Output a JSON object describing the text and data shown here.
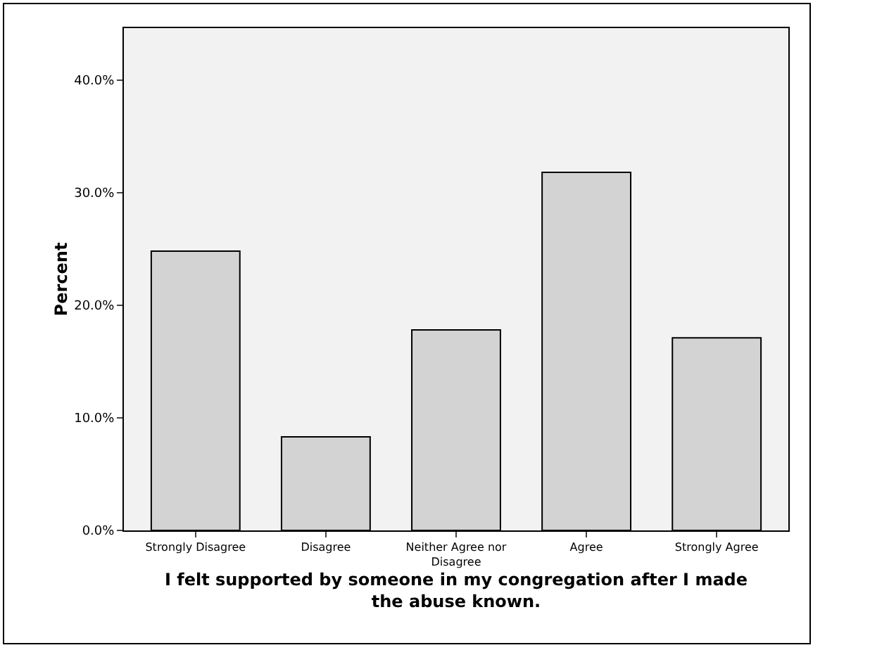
{
  "chart_data": {
    "type": "bar",
    "xlabel": "I felt supported by someone in my congregation after I made the abuse known.",
    "ylabel": "Percent",
    "categories": [
      "Strongly Disagree",
      "Disagree",
      "Neither Agree nor Disagree",
      "Agree",
      "Strongly Agree"
    ],
    "values": [
      24.8,
      8.3,
      17.8,
      31.8,
      17.1
    ],
    "color": "#d3d3d3",
    "ylim": [
      0,
      44.6
    ],
    "yticks": [
      {
        "value": 0,
        "label": "0.0%"
      },
      {
        "value": 10,
        "label": "10.0%"
      },
      {
        "value": 20,
        "label": "20.0%"
      },
      {
        "value": 30,
        "label": "30.0%"
      },
      {
        "value": 40,
        "label": "40.0%"
      }
    ],
    "grid": false
  }
}
